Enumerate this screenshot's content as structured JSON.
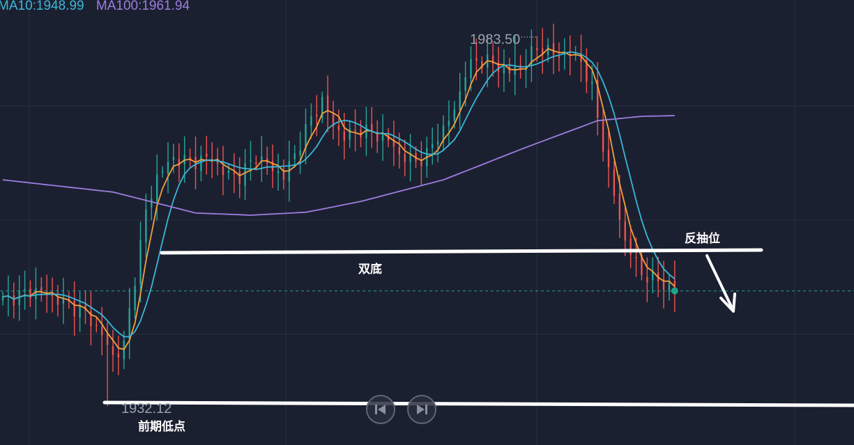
{
  "legend": {
    "ma10_text": "MA10:1948.99",
    "ma100_text": "MA100:1961.94"
  },
  "colors": {
    "background": "#1b2030",
    "grid": "#2a3142",
    "up": "#26a69a",
    "down": "#ef5350",
    "ma5": "#f5a03c",
    "ma10": "#3ab8d8",
    "ma100": "#9c7ee0",
    "annotation": "#ffffff",
    "current_price_line": "#1ea589"
  },
  "annotations": {
    "high_label": "1983.50",
    "low_label": "1932.12",
    "double_bottom": "双底",
    "pullback": "反抽位",
    "previous_low": "前期低点"
  },
  "nav": {
    "prev_icon": "skip-back-icon",
    "next_icon": "skip-forward-icon"
  },
  "chart_data": {
    "type": "candlestick",
    "y_scale": {
      "price_range": [
        1930.5,
        1986.5
      ]
    },
    "y_range": [
      1930.5,
      1986.5
    ],
    "x_count": 123,
    "current_price": 1948.1,
    "price_high": 1983.5,
    "price_low": 1932.12,
    "series": [
      {
        "name": "MA10",
        "value": 1948.99
      },
      {
        "name": "MA100",
        "value": 1961.94
      }
    ]
  }
}
